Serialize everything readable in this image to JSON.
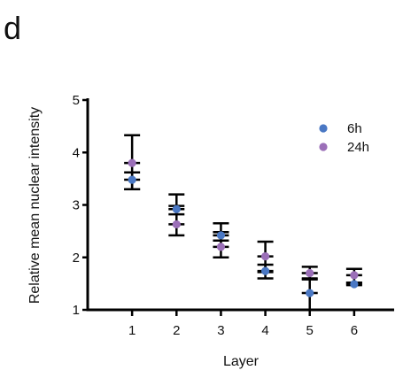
{
  "panel_label": "d",
  "chart_data": {
    "type": "scatter",
    "title": "",
    "xlabel": "Layer",
    "ylabel": "Relative mean nuclear intensity",
    "x": [
      1,
      2,
      3,
      4,
      5,
      6
    ],
    "xlim": [
      0,
      6.9
    ],
    "ylim": [
      1,
      5
    ],
    "xticks": [
      1,
      2,
      3,
      4,
      5,
      6
    ],
    "yticks": [
      1,
      2,
      3,
      4,
      5
    ],
    "grid": false,
    "legend_position": "top-right",
    "series": [
      {
        "name": "6h",
        "color": "#4a78c4",
        "values": [
          3.48,
          2.92,
          2.42,
          1.74,
          1.32,
          1.49
        ],
        "error_upper": [
          3.62,
          2.98,
          2.48,
          1.86,
          1.58,
          1.52
        ],
        "error_lower": [
          3.3,
          2.82,
          2.32,
          1.6,
          1.0,
          1.47
        ]
      },
      {
        "name": "24h",
        "color": "#9b6fb8",
        "values": [
          3.8,
          2.63,
          2.2,
          2.02,
          1.7,
          1.66
        ],
        "error_upper": [
          4.33,
          3.2,
          2.65,
          2.3,
          1.82,
          1.78
        ],
        "error_lower": [
          3.3,
          2.42,
          2.0,
          1.72,
          1.6,
          1.52
        ]
      }
    ]
  }
}
